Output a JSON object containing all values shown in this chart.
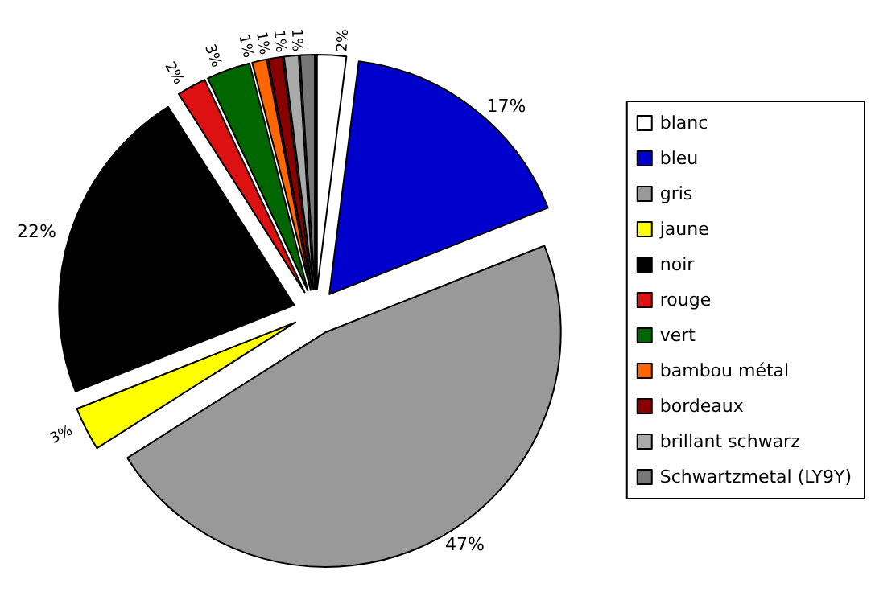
{
  "chart_data": {
    "type": "pie",
    "categories": [
      "blanc",
      "bleu",
      "gris",
      "jaune",
      "noir",
      "rouge",
      "vert",
      "bambou métal",
      "bordeaux",
      "brillant schwarz",
      "Schwartzmetal (LY9Y)"
    ],
    "values": [
      2,
      17,
      47,
      3,
      22,
      2,
      3,
      1,
      1,
      1,
      1
    ],
    "colors": [
      "#ffffff",
      "#0000cc",
      "#999999",
      "#ffff00",
      "#000000",
      "#dd1111",
      "#006600",
      "#ff6600",
      "#880000",
      "#aaaaaa",
      "#777777"
    ],
    "value_labels": [
      "2%",
      "17%",
      "47%",
      "3%",
      "22%",
      "2%",
      "3%",
      "1%",
      "1%",
      "1%",
      "1%"
    ],
    "legend": "right"
  }
}
